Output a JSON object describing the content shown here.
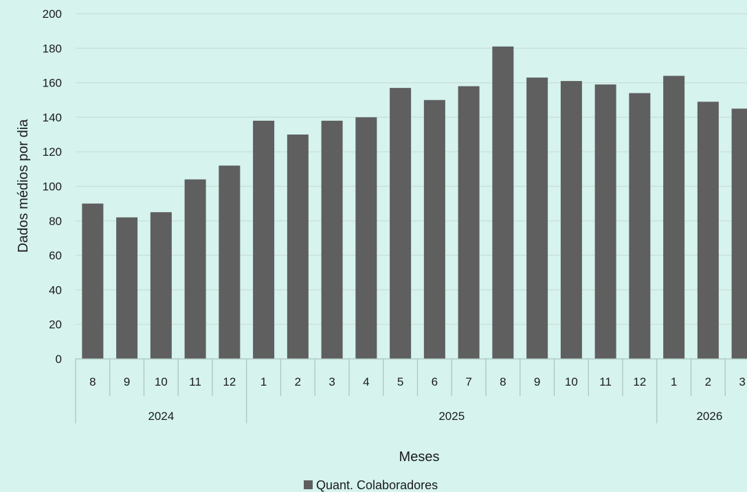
{
  "chart_data": {
    "type": "bar",
    "title": "",
    "xlabel": "Meses",
    "ylabel": "Dados médios por dia",
    "ylim": [
      0,
      200
    ],
    "yticks": [
      0,
      20,
      40,
      60,
      80,
      100,
      120,
      140,
      160,
      180,
      200
    ],
    "grid": true,
    "legend_position": "bottom",
    "bar_color": "#5f5f5f",
    "background_color": "#d6f3ee",
    "grid_color": "#c9dcd8",
    "groups": [
      {
        "label": "2024",
        "categories": [
          "8",
          "9",
          "10",
          "11",
          "12"
        ]
      },
      {
        "label": "2025",
        "categories": [
          "1",
          "2",
          "3",
          "4",
          "5",
          "6",
          "7",
          "8",
          "9",
          "10",
          "11",
          "12"
        ]
      },
      {
        "label": "2026",
        "categories": [
          "1",
          "2",
          "3"
        ]
      }
    ],
    "series": [
      {
        "name": "Quant. Colaboradores",
        "values": [
          90,
          82,
          85,
          104,
          112,
          138,
          130,
          138,
          140,
          157,
          150,
          158,
          181,
          163,
          161,
          159,
          154,
          164,
          149,
          145
        ]
      }
    ]
  }
}
